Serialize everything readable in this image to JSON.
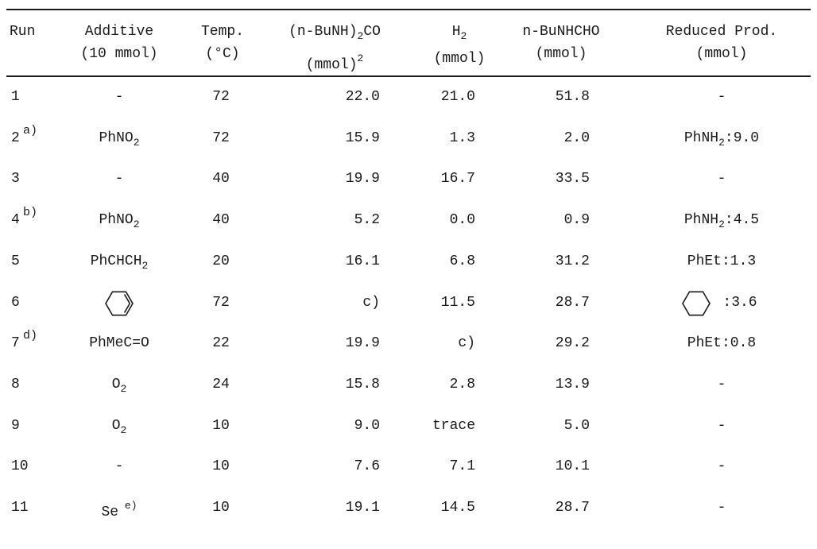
{
  "header": {
    "run": "Run",
    "additive_1": "Additive",
    "additive_2": "(10 mmol)",
    "temp_1": "Temp.",
    "temp_2": "(°C)",
    "urea_1": "(n-BuNH)",
    "urea_sub": "2",
    "urea_sup": "2",
    "urea_end": "CO",
    "urea_2": "(mmol)",
    "h2_1": "H",
    "h2_sub": "2",
    "h2_2": "(mmol)",
    "form_1": "n-BuNHCHO",
    "form_2": "(mmol)",
    "red_1": "Reduced Prod.",
    "red_2": "(mmol)"
  },
  "rows": [
    {
      "run": "1",
      "note": "",
      "additive": "-",
      "add_sub": "",
      "add_sup": "",
      "temp": "72",
      "urea": "22.0",
      "h2": "21.0",
      "form": "51.8",
      "red": "-",
      "red_sub": "",
      "red_tail": ""
    },
    {
      "run": "2",
      "note": "a)",
      "additive": "PhNO",
      "add_sub": "2",
      "add_sup": "",
      "temp": "72",
      "urea": "15.9",
      "h2": "1.3",
      "form": "2.0",
      "red": "PhNH",
      "red_sub": "2",
      "red_tail": ":9.0"
    },
    {
      "run": "3",
      "note": "",
      "additive": "-",
      "add_sub": "",
      "add_sup": "",
      "temp": "40",
      "urea": "19.9",
      "h2": "16.7",
      "form": "33.5",
      "red": "-",
      "red_sub": "",
      "red_tail": ""
    },
    {
      "run": "4",
      "note": "b)",
      "additive": "PhNO",
      "add_sub": "2",
      "add_sup": "",
      "temp": "40",
      "urea": "5.2",
      "h2": "0.0",
      "form": "0.9",
      "red": "PhNH",
      "red_sub": "2",
      "red_tail": ":4.5"
    },
    {
      "run": "5",
      "note": "",
      "additive": "PhCHCH",
      "add_sub": "2",
      "add_sup": "",
      "temp": "20",
      "urea": "16.1",
      "h2": "6.8",
      "form": "31.2",
      "red": "PhEt:1.3",
      "red_sub": "",
      "red_tail": ""
    },
    {
      "run": "6",
      "note": "",
      "additive": "",
      "add_sub": "",
      "add_sup": "",
      "temp": "72",
      "urea": "c)",
      "h2": "11.5",
      "form": "28.7",
      "red": "",
      "red_sub": "",
      "red_tail": ":3.6"
    },
    {
      "run": "7",
      "note": "d)",
      "additive": "PhMeC=O",
      "add_sub": "",
      "add_sup": "",
      "temp": "22",
      "urea": "19.9",
      "h2": "c)",
      "form": "29.2",
      "red": "PhEt:0.8",
      "red_sub": "",
      "red_tail": ""
    },
    {
      "run": "8",
      "note": "",
      "additive": "O",
      "add_sub": "2",
      "add_sup": "",
      "temp": "24",
      "urea": "15.8",
      "h2": "2.8",
      "form": "13.9",
      "red": "-",
      "red_sub": "",
      "red_tail": ""
    },
    {
      "run": "9",
      "note": "",
      "additive": "O",
      "add_sub": "2",
      "add_sup": "",
      "temp": "10",
      "urea": "9.0",
      "h2": "trace",
      "form": "5.0",
      "red": "-",
      "red_sub": "",
      "red_tail": ""
    },
    {
      "run": "10",
      "note": "",
      "additive": "-",
      "add_sub": "",
      "add_sup": "",
      "temp": "10",
      "urea": "7.6",
      "h2": "7.1",
      "form": "10.1",
      "red": "-",
      "red_sub": "",
      "red_tail": ""
    },
    {
      "run": "11",
      "note": "",
      "additive": "Se",
      "add_sub": "",
      "add_sup": "e)",
      "temp": "10",
      "urea": "19.1",
      "h2": "14.5",
      "form": "28.7",
      "red": "-",
      "red_sub": "",
      "red_tail": ""
    }
  ],
  "icons": {
    "cyclohexene": "cyclohexene-structure",
    "cyclohexane": "cyclohexane-structure"
  }
}
